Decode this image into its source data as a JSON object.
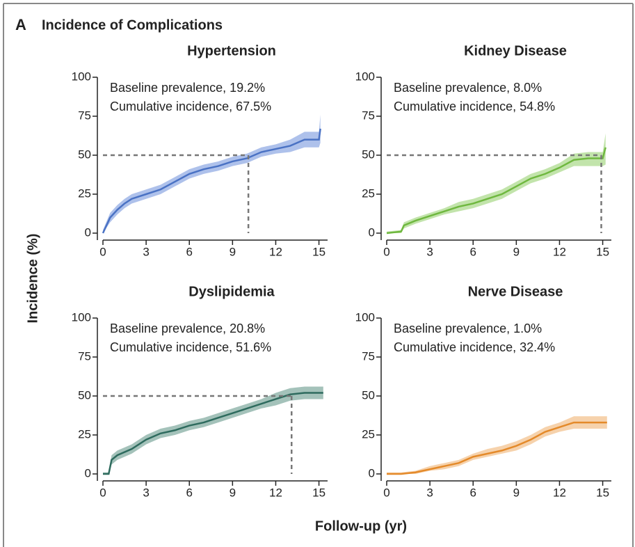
{
  "panel_label": "A",
  "title": "Incidence of Complications",
  "ylabel": "Incidence (%)",
  "xlabel": "Follow-up (yr)",
  "chart_data": [
    {
      "type": "line",
      "title": "Hypertension",
      "annotations": [
        "Baseline prevalence, 19.2%",
        "Cumulative incidence, 67.5%"
      ],
      "color": "#4a72c4",
      "band_color": "#93ace4",
      "x": [
        0,
        0.5,
        1,
        1.5,
        2,
        3,
        4,
        5,
        6,
        7,
        8,
        9,
        10,
        11,
        12,
        13,
        14,
        15,
        15.1
      ],
      "values": [
        0,
        10,
        15,
        19,
        22,
        25,
        28,
        33,
        38,
        41,
        43,
        46,
        48,
        52,
        54,
        56,
        60,
        60,
        67
      ],
      "lower": [
        0,
        7,
        12,
        16,
        19,
        22,
        25,
        30,
        35,
        38,
        40,
        43,
        45,
        49,
        51,
        52,
        55,
        55,
        58
      ],
      "upper": [
        2,
        13,
        18,
        22,
        25,
        28,
        31,
        36,
        41,
        44,
        46,
        49,
        51,
        55,
        57,
        60,
        65,
        65,
        76
      ],
      "reference_y": 50,
      "reference_x": 10.1,
      "xlim": [
        0,
        15.6
      ],
      "ylim": [
        0,
        100
      ],
      "xticks": [
        0,
        3,
        6,
        9,
        12,
        15
      ],
      "yticks": [
        0,
        25,
        50,
        75,
        100
      ]
    },
    {
      "type": "line",
      "title": "Kidney Disease",
      "annotations": [
        "Baseline prevalence, 8.0%",
        "Cumulative incidence, 54.8%"
      ],
      "color": "#6fb83f",
      "band_color": "#aedb8f",
      "x": [
        0,
        1,
        1.2,
        2,
        3,
        4,
        5,
        6,
        7,
        8,
        9,
        10,
        11,
        12,
        13,
        14,
        15,
        15.2
      ],
      "values": [
        0,
        1,
        5,
        8,
        11,
        14,
        17,
        19,
        22,
        25,
        30,
        35,
        38,
        42,
        47,
        48,
        48,
        55
      ],
      "lower": [
        0,
        0,
        3,
        6,
        9,
        12,
        14,
        16,
        19,
        22,
        27,
        32,
        35,
        39,
        43,
        43,
        43,
        44
      ],
      "upper": [
        1,
        2,
        7,
        10,
        13,
        16,
        20,
        22,
        25,
        28,
        33,
        38,
        41,
        45,
        51,
        52,
        52,
        64
      ],
      "reference_y": 50,
      "reference_x": 14.9,
      "xlim": [
        0,
        15.6
      ],
      "ylim": [
        0,
        100
      ],
      "xticks": [
        0,
        3,
        6,
        9,
        12,
        15
      ],
      "yticks": [
        0,
        25,
        50,
        75,
        100
      ]
    },
    {
      "type": "line",
      "title": "Dyslipidemia",
      "annotations": [
        "Baseline prevalence, 20.8%",
        "Cumulative incidence, 51.6%"
      ],
      "color": "#2e6b5e",
      "band_color": "#86ad a3",
      "x": [
        0,
        0.4,
        0.6,
        1,
        2,
        3,
        4,
        5,
        6,
        7,
        8,
        9,
        10,
        11,
        12,
        13,
        14,
        15.3
      ],
      "values": [
        0,
        0,
        9,
        12,
        16,
        22,
        26,
        28,
        31,
        33,
        36,
        39,
        42,
        45,
        48,
        51,
        52,
        52
      ],
      "lower": [
        0,
        0,
        6,
        9,
        13,
        19,
        23,
        25,
        28,
        30,
        33,
        36,
        39,
        42,
        44,
        47,
        48,
        48
      ],
      "upper": [
        1,
        1,
        12,
        15,
        19,
        25,
        29,
        31,
        34,
        36,
        39,
        42,
        45,
        48,
        52,
        55,
        56,
        56
      ],
      "reference_y": 50,
      "reference_x": 13.1,
      "xlim": [
        0,
        15.6
      ],
      "ylim": [
        0,
        100
      ],
      "xticks": [
        0,
        3,
        6,
        9,
        12,
        15
      ],
      "yticks": [
        0,
        25,
        50,
        75,
        100
      ]
    },
    {
      "type": "line",
      "title": "Nerve Disease",
      "annotations": [
        "Baseline prevalence, 1.0%",
        "Cumulative incidence, 32.4%"
      ],
      "color": "#e48a2a",
      "band_color": "#f3c390",
      "x": [
        0,
        1,
        2,
        3,
        4,
        5,
        6,
        7,
        8,
        9,
        10,
        11,
        12,
        13,
        15.3
      ],
      "values": [
        0,
        0,
        1,
        3,
        5,
        7,
        11,
        13,
        15,
        18,
        22,
        27,
        30,
        33,
        33
      ],
      "lower": [
        0,
        0,
        0,
        2,
        3,
        5,
        9,
        11,
        13,
        15,
        19,
        24,
        27,
        29,
        29
      ],
      "upper": [
        1,
        1,
        2,
        5,
        7,
        9,
        13,
        16,
        18,
        21,
        25,
        30,
        33,
        37,
        37
      ],
      "xlim": [
        0,
        15.6
      ],
      "ylim": [
        0,
        100
      ],
      "xticks": [
        0,
        3,
        6,
        9,
        12,
        15
      ],
      "yticks": [
        0,
        25,
        50,
        75,
        100
      ]
    }
  ]
}
